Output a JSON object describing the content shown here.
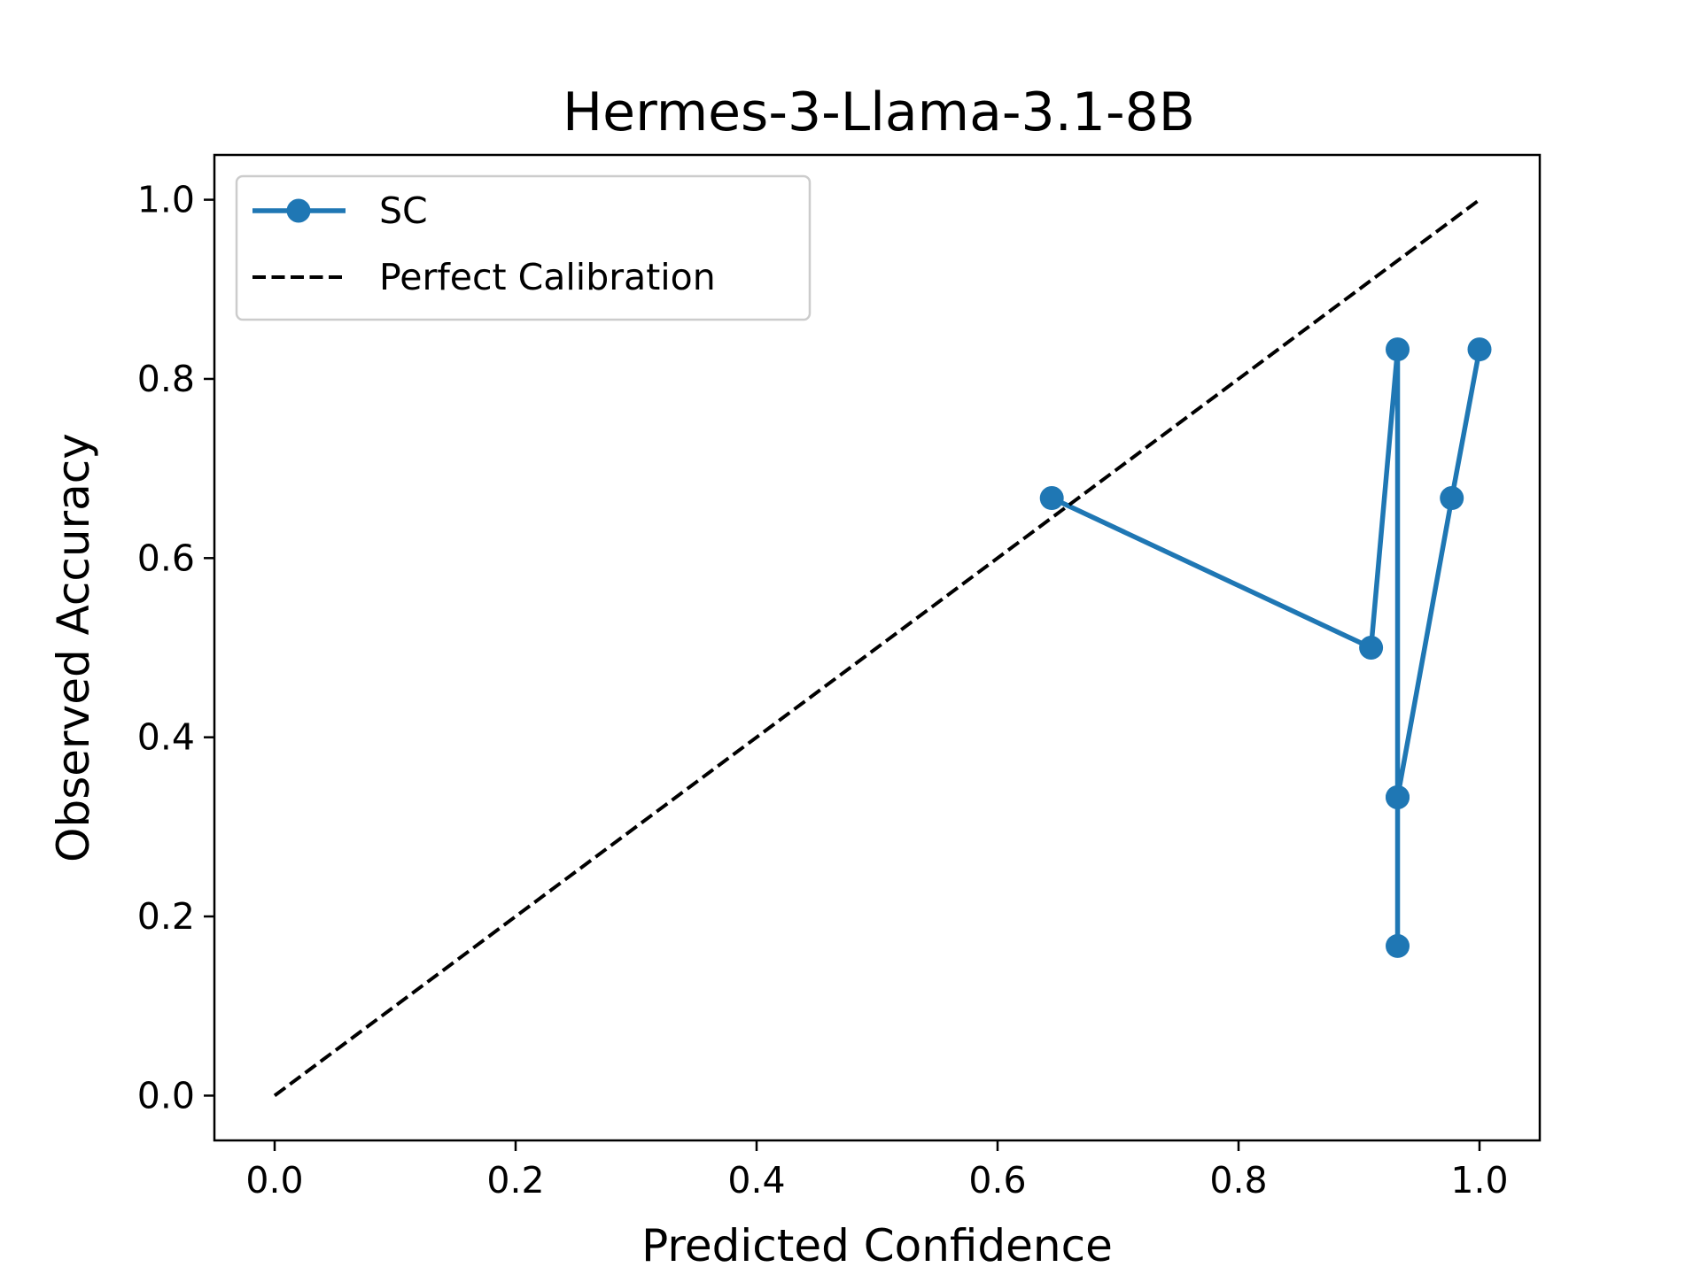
{
  "chart_data": {
    "type": "line",
    "title": "Hermes-3-Llama-3.1-8B",
    "xlabel": "Predicted Confidence",
    "ylabel": "Observed Accuracy",
    "xlim": [
      -0.05,
      1.05
    ],
    "ylim": [
      -0.05,
      1.05
    ],
    "xticks": [
      "0.0",
      "0.2",
      "0.4",
      "0.6",
      "0.8",
      "1.0"
    ],
    "yticks": [
      "0.0",
      "0.2",
      "0.4",
      "0.6",
      "0.8",
      "1.0"
    ],
    "grid": false,
    "legend_position": "top-left",
    "series": [
      {
        "name": "SC",
        "style": "solid-line-with-circle-markers",
        "color": "#1f77b4",
        "x": [
          0.645,
          0.91,
          0.932,
          0.932,
          0.932,
          0.932,
          0.977,
          1.0
        ],
        "y": [
          0.667,
          0.5,
          0.833,
          0.333,
          0.167,
          0.333,
          0.667,
          0.833
        ]
      },
      {
        "name": "Perfect Calibration",
        "style": "dashed-line",
        "color": "#000000",
        "x": [
          0.0,
          1.0
        ],
        "y": [
          0.0,
          1.0
        ]
      }
    ]
  }
}
